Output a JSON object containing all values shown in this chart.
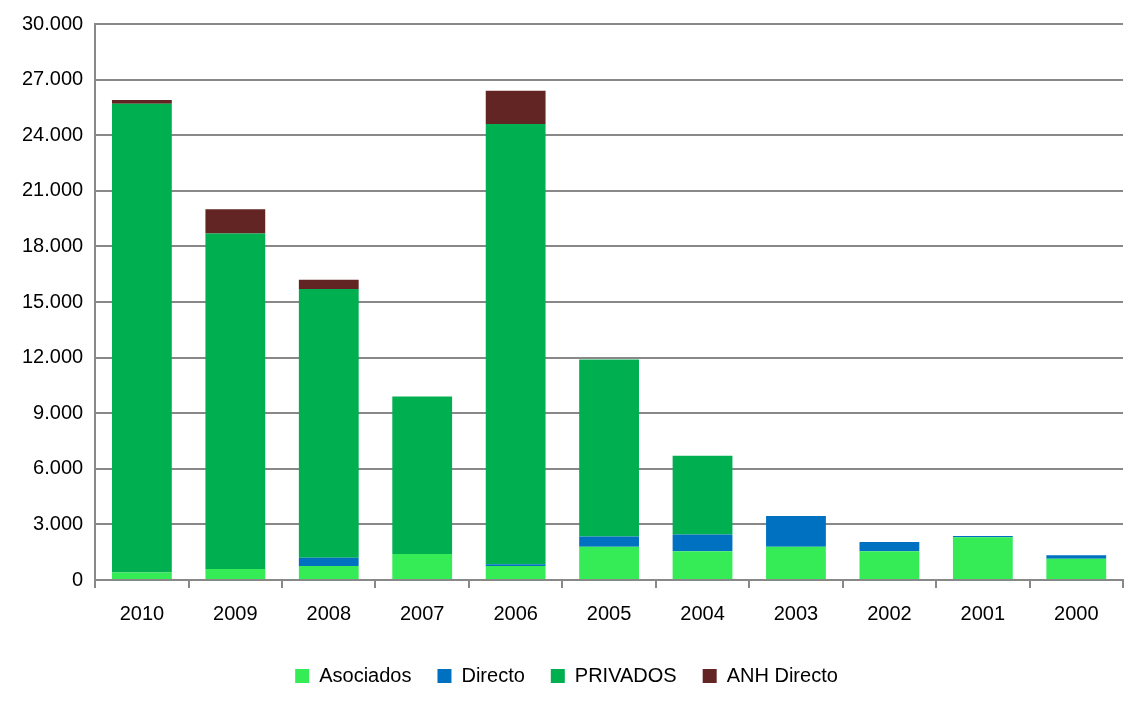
{
  "chart_data": {
    "type": "bar",
    "stacked": true,
    "categories": [
      "2010",
      "2009",
      "2008",
      "2007",
      "2006",
      "2005",
      "2004",
      "2003",
      "2002",
      "2001",
      "2000"
    ],
    "series": [
      {
        "name": "Asociados",
        "color": "#35eb56",
        "values": [
          400,
          600,
          750,
          1400,
          750,
          1800,
          1550,
          1800,
          1550,
          2300,
          1150
        ]
      },
      {
        "name": "Directo",
        "color": "#0070c0",
        "values": [
          0,
          0,
          450,
          0,
          100,
          550,
          900,
          1650,
          500,
          80,
          180
        ]
      },
      {
        "name": "PRIVADOS",
        "color": "#00af50",
        "values": [
          25300,
          18100,
          14500,
          8500,
          23750,
          9550,
          4250,
          0,
          0,
          0,
          0
        ]
      },
      {
        "name": "ANH Directo",
        "color": "#632523",
        "values": [
          200,
          1300,
          500,
          0,
          1800,
          0,
          0,
          0,
          0,
          0,
          0
        ]
      }
    ],
    "ylim": [
      0,
      30000
    ],
    "yticks": [
      {
        "value": 0,
        "label": "0"
      },
      {
        "value": 3000,
        "label": "3.000"
      },
      {
        "value": 6000,
        "label": "6.000"
      },
      {
        "value": 9000,
        "label": "9.000"
      },
      {
        "value": 12000,
        "label": "12.000"
      },
      {
        "value": 15000,
        "label": "15.000"
      },
      {
        "value": 18000,
        "label": "18.000"
      },
      {
        "value": 21000,
        "label": "21.000"
      },
      {
        "value": 24000,
        "label": "24.000"
      },
      {
        "value": 27000,
        "label": "27.000"
      },
      {
        "value": 30000,
        "label": "30.000"
      }
    ],
    "grid": "y",
    "legend": "bottom"
  }
}
